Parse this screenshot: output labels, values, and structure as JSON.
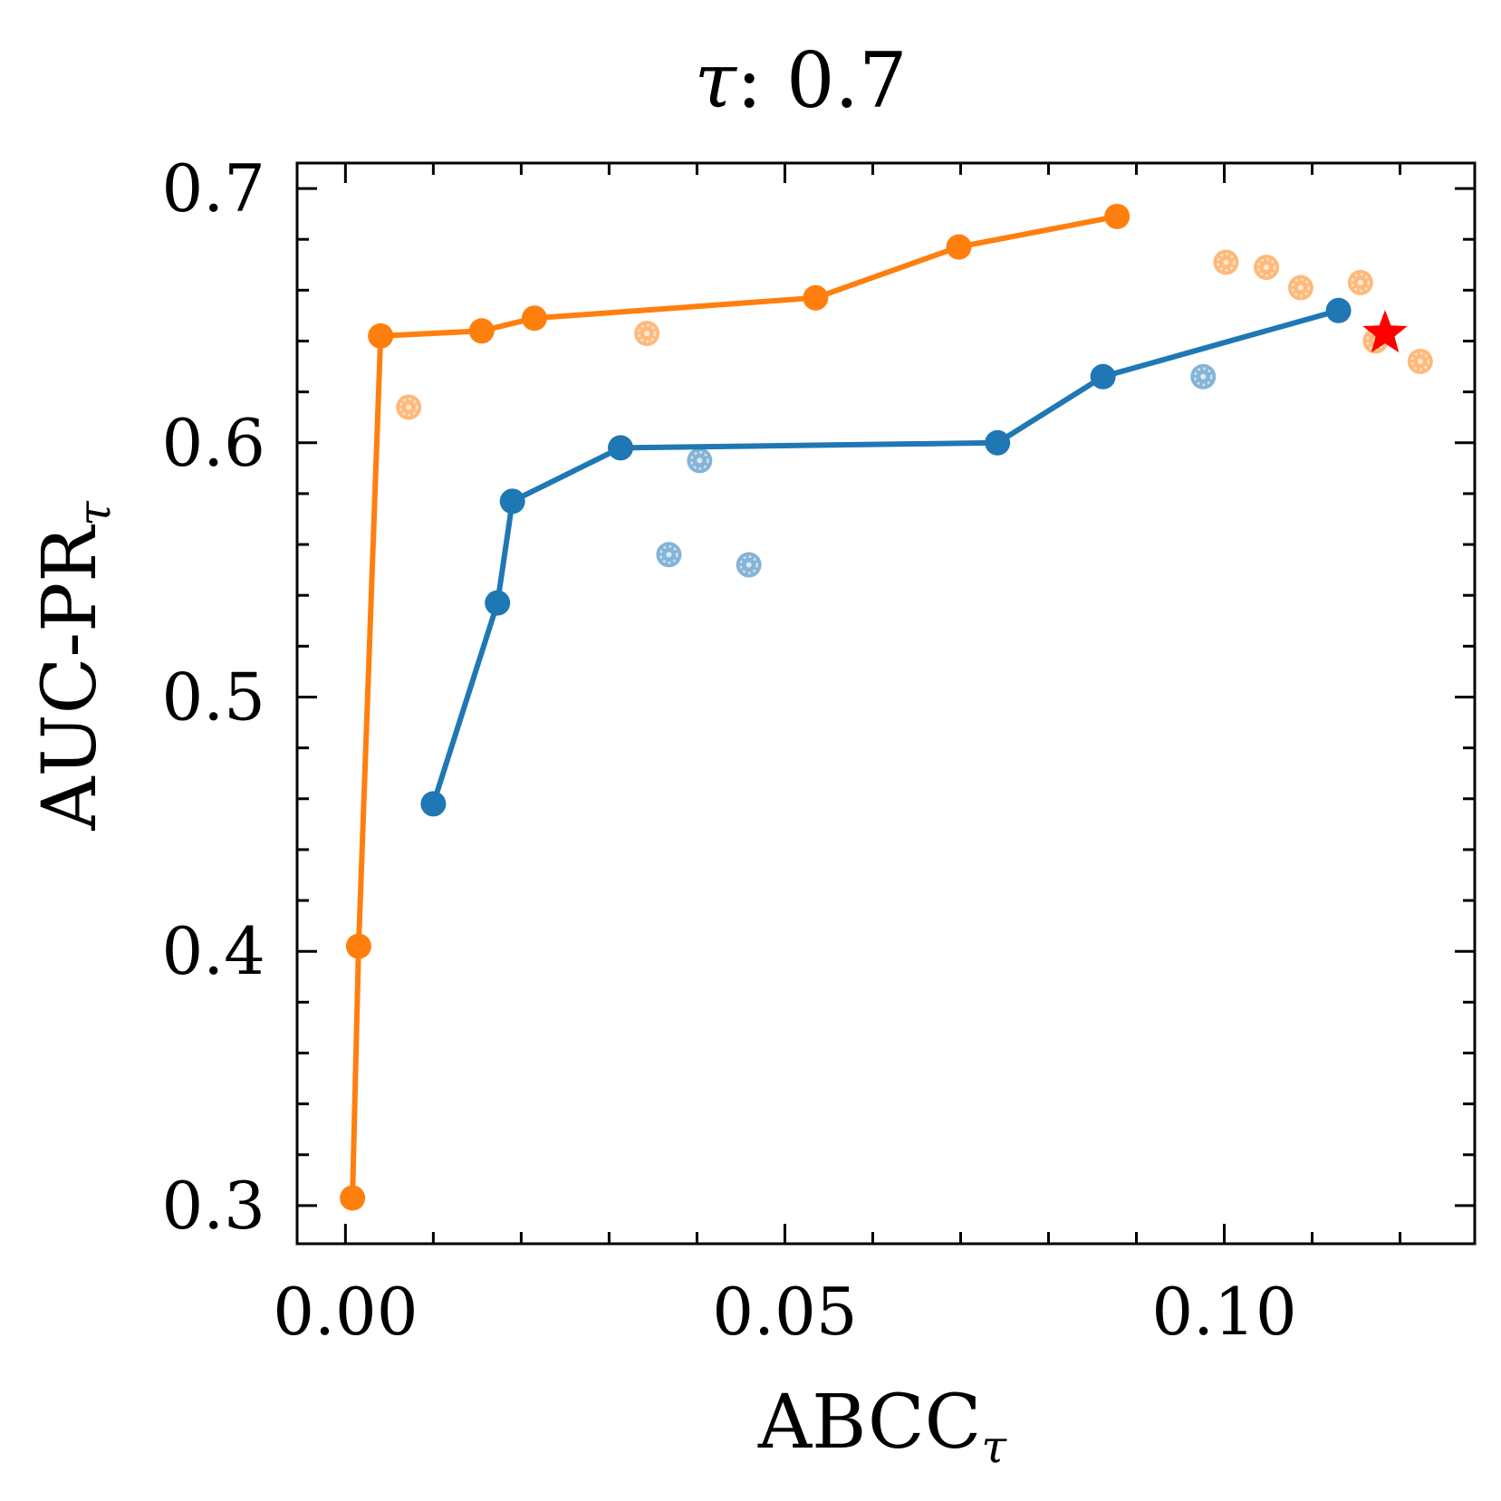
{
  "chart_data": {
    "type": "scatter",
    "title": {
      "symbol": "τ",
      "text": ": 0.7"
    },
    "xlabel": {
      "main": "ABCC",
      "sub": "τ"
    },
    "ylabel": {
      "main": "AUC-PR",
      "sub": "τ"
    },
    "xlim": [
      -0.0055,
      0.1285
    ],
    "ylim": [
      0.285,
      0.71
    ],
    "x_ticks": [
      0.0,
      0.05,
      0.1
    ],
    "x_tick_labels": [
      "0.00",
      "0.05",
      "0.10"
    ],
    "x_minor_ticks": [
      0.01,
      0.02,
      0.03,
      0.04,
      0.06,
      0.07,
      0.08,
      0.09,
      0.11,
      0.12
    ],
    "y_ticks": [
      0.3,
      0.4,
      0.5,
      0.6,
      0.7
    ],
    "y_tick_labels": [
      "0.3",
      "0.4",
      "0.5",
      "0.6",
      "0.7"
    ],
    "y_minor_ticks": [
      0.32,
      0.34,
      0.36,
      0.38,
      0.42,
      0.44,
      0.46,
      0.48,
      0.52,
      0.54,
      0.56,
      0.58,
      0.62,
      0.64,
      0.66,
      0.68
    ],
    "grid": false,
    "colors": {
      "blue": "#1f77b4",
      "orange": "#ff7f0e",
      "star": "#ff0000",
      "axis": "#000000"
    },
    "series": [
      {
        "name": "orange-frontier",
        "color": "#ff7f0e",
        "mode": "line+markers",
        "points": [
          [
            0.0008,
            0.303
          ],
          [
            0.0015,
            0.402
          ],
          [
            0.004,
            0.642
          ],
          [
            0.0155,
            0.644
          ],
          [
            0.0215,
            0.649
          ],
          [
            0.0535,
            0.657
          ],
          [
            0.0698,
            0.677
          ],
          [
            0.0878,
            0.689
          ]
        ]
      },
      {
        "name": "blue-frontier",
        "color": "#1f77b4",
        "mode": "line+markers",
        "points": [
          [
            0.01,
            0.458
          ],
          [
            0.0173,
            0.537
          ],
          [
            0.019,
            0.577
          ],
          [
            0.0313,
            0.598
          ],
          [
            0.0742,
            0.6
          ],
          [
            0.0862,
            0.626
          ],
          [
            0.113,
            0.652
          ]
        ]
      },
      {
        "name": "orange-dominated",
        "color": "#ff7f0e",
        "mode": "faded-markers",
        "points": [
          [
            0.0072,
            0.614
          ],
          [
            0.0343,
            0.643
          ],
          [
            0.1002,
            0.671
          ],
          [
            0.1048,
            0.669
          ],
          [
            0.1087,
            0.661
          ],
          [
            0.1155,
            0.663
          ],
          [
            0.1172,
            0.64
          ],
          [
            0.1223,
            0.632
          ]
        ]
      },
      {
        "name": "blue-dominated",
        "color": "#1f77b4",
        "mode": "faded-markers",
        "points": [
          [
            0.0368,
            0.556
          ],
          [
            0.0403,
            0.593
          ],
          [
            0.0459,
            0.552
          ],
          [
            0.0976,
            0.626
          ]
        ]
      },
      {
        "name": "best",
        "color": "#ff0000",
        "mode": "star",
        "points": [
          [
            0.1183,
            0.643
          ]
        ]
      }
    ]
  }
}
